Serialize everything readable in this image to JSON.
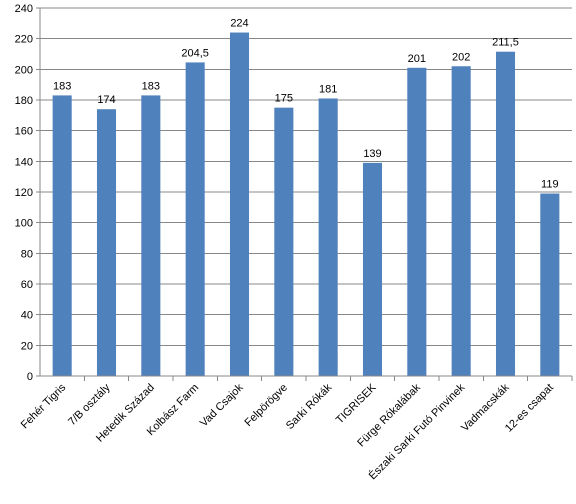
{
  "chart_data": {
    "type": "bar",
    "title": "",
    "xlabel": "",
    "ylabel": "",
    "categories": [
      "Fehér Tigris",
      "7/B osztály",
      "Hetedik Század",
      "Kolbász Farm",
      "Vad Csajok",
      "Felpörögve",
      "Sarki Rókák",
      "TIGRISEK",
      "Fürge Rókalábak",
      "Északi Sarki Futó Pinvinek",
      "Vadmacskák",
      "12-es csapat"
    ],
    "values": [
      183,
      174,
      183,
      204.5,
      224,
      175,
      181,
      139,
      201,
      202,
      211.5,
      119
    ],
    "value_labels": [
      "183",
      "174",
      "183",
      "204,5",
      "224",
      "175",
      "181",
      "139",
      "201",
      "202",
      "211,5",
      "119"
    ],
    "ylim": [
      0,
      240
    ],
    "y_ticks": [
      0,
      20,
      40,
      60,
      80,
      100,
      120,
      140,
      160,
      180,
      200,
      220,
      240
    ],
    "grid": true,
    "legend": false,
    "bar_color": "#4f81bd",
    "grid_color": "#888888",
    "axis_color": "#888888"
  }
}
